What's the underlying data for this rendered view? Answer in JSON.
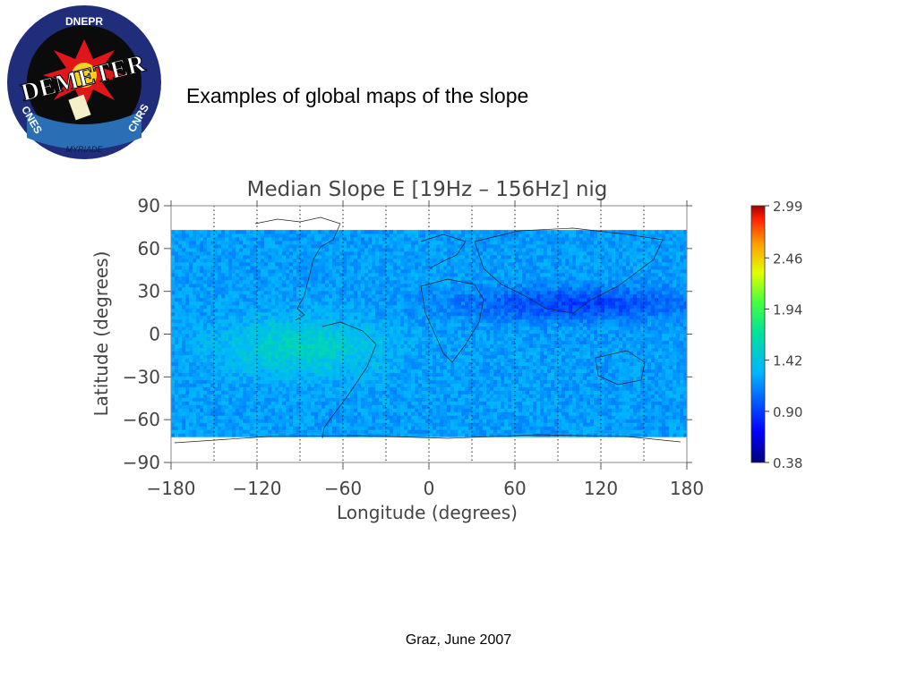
{
  "slide": {
    "title": "Examples of global maps of the slope",
    "footer": "Graz, June 2007"
  },
  "logo": {
    "top_text": "DNEPR",
    "main_text": "DEMETER",
    "left_text": "CNES",
    "right_text": "CNRS",
    "bottom_text": "MYRIADE"
  },
  "colors": {
    "logo_ring": "#1f2d7a",
    "logo_inner": "#0b0b0b",
    "logo_burst": "#e0161b",
    "accent_text": "#000000"
  },
  "chart_data": {
    "type": "heatmap",
    "title": "Median Slope E [19Hz – 156Hz] nig",
    "xlabel": "Longitude (degrees)",
    "ylabel": "Latitude (degrees)",
    "xlim": [
      -180,
      180
    ],
    "ylim": [
      -90,
      90
    ],
    "xticks": [
      "−180",
      "−120",
      "−60",
      "0",
      "60",
      "120",
      "180"
    ],
    "yticks": [
      "90",
      "60",
      "30",
      "0",
      "−30",
      "−60",
      "−90"
    ],
    "gridlines_x": [
      -150,
      -120,
      -90,
      -60,
      -30,
      0,
      30,
      60,
      90,
      120,
      150
    ],
    "data_lat_range": [
      -72,
      72
    ],
    "colorbar": {
      "ticks": [
        "2.99",
        "2.46",
        "1.94",
        "1.42",
        "0.90",
        "0.38"
      ],
      "range": [
        0.38,
        2.99
      ]
    },
    "features": [
      {
        "description": "low slope band",
        "lat": [
          15,
          25
        ],
        "lon": [
          20,
          180
        ],
        "value": 0.9
      },
      {
        "description": "high slope region",
        "lat": [
          -25,
          5
        ],
        "lon": [
          -140,
          -40
        ],
        "value": 1.55
      }
    ]
  }
}
